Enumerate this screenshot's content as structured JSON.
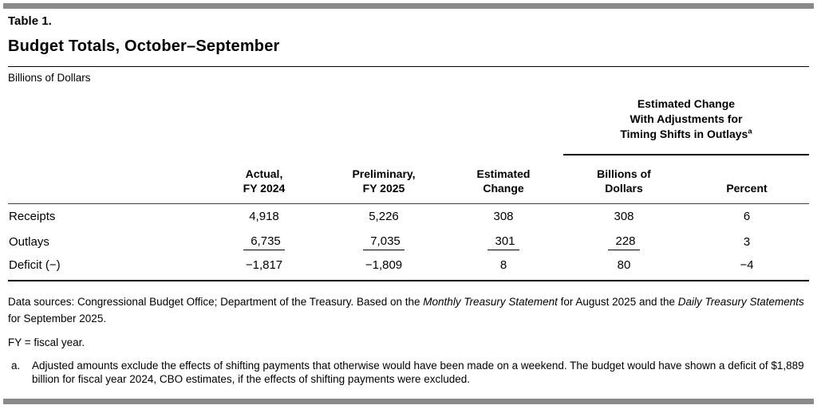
{
  "header": {
    "table_label": "Table 1.",
    "title": "Budget Totals, October–September",
    "unit_note": "Billions of Dollars"
  },
  "table": {
    "spanner": {
      "lines": [
        "Estimated Change",
        "With Adjustments for",
        "Timing Shifts in Outlays"
      ],
      "footnote_marker": "a"
    },
    "columns": [
      {
        "line1": "Actual,",
        "line2": "FY 2024"
      },
      {
        "line1": "Preliminary,",
        "line2": "FY 2025"
      },
      {
        "line1": "Estimated",
        "line2": "Change"
      },
      {
        "line1": "Billions of",
        "line2": "Dollars"
      },
      {
        "line1": "",
        "line2": "Percent"
      }
    ],
    "rows": [
      {
        "label": "Receipts",
        "values": [
          "4,918",
          "5,226",
          "308",
          "308",
          "6"
        ]
      },
      {
        "label": "Outlays",
        "values": [
          "6,735",
          "7,035",
          "301",
          "228",
          "3"
        ]
      },
      {
        "label": "Deficit (−)",
        "values": [
          "−1,817",
          "−1,809",
          "8",
          "80",
          "−4"
        ]
      }
    ]
  },
  "footnotes": {
    "data_sources_parts": [
      {
        "text": "Data sources: Congressional Budget Office; Department of the Treasury. Based on the "
      },
      {
        "text": "Monthly Treasury Statement"
      },
      {
        "text": " for August 2025 and the "
      },
      {
        "text": "Daily Treasury Statements"
      },
      {
        "text": " for September 2025."
      }
    ],
    "fy_note": "FY = fiscal year.",
    "note_a_marker": "a.",
    "note_a_text": "Adjusted amounts exclude the effects of shifting payments that otherwise would have been made on a weekend. The budget would have shown a deficit of $1,889 billion for fiscal year 2024, CBO estimates, if the effects of shifting payments were excluded."
  },
  "colors": {
    "accent_bar": "#8a8a8a",
    "text": "#000000",
    "rule": "#000000"
  }
}
